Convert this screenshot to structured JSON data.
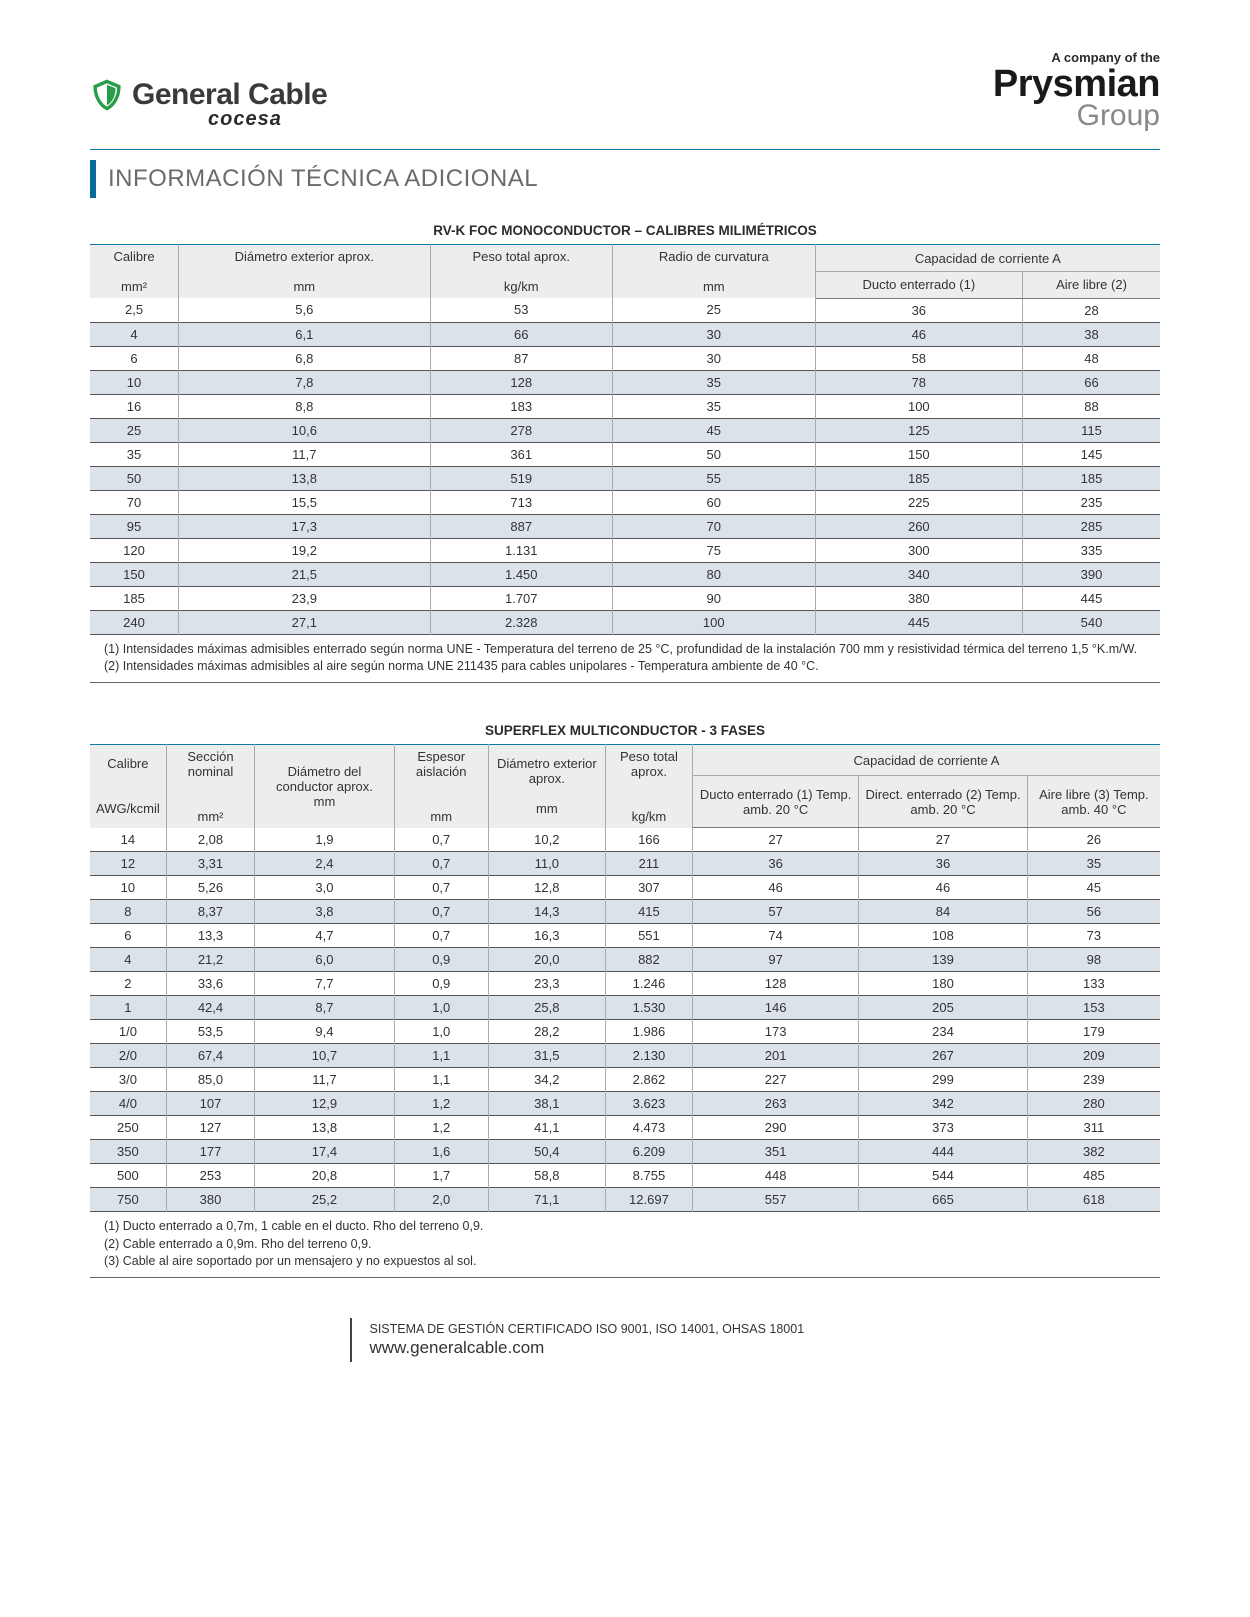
{
  "header": {
    "left_brand_main": "General Cable",
    "left_brand_sub": "cocesa",
    "right_tagline": "A company of the",
    "right_brand_main": "Prysmian",
    "right_brand_sub": "Group",
    "shield_color": "#2a9d4a"
  },
  "section_title": "INFORMACIÓN TÉCNICA ADICIONAL",
  "accent_color": "#0a6a98",
  "table1": {
    "title": "RV-K FOC MONOCONDUCTOR – CALIBRES MILIMÉTRICOS",
    "header_row1": [
      "Calibre",
      "Diámetro exterior aprox.",
      "Peso total aprox.",
      "Radio de curvatura",
      "Capacidad de corriente A"
    ],
    "header_row2": [
      "",
      "",
      "",
      "",
      "Ducto enterrado (1)",
      "Aire libre (2)"
    ],
    "units": [
      "mm²",
      "mm",
      "kg/km",
      "mm",
      "",
      ""
    ],
    "rows": [
      [
        "2,5",
        "5,6",
        "53",
        "25",
        "36",
        "28"
      ],
      [
        "4",
        "6,1",
        "66",
        "30",
        "46",
        "38"
      ],
      [
        "6",
        "6,8",
        "87",
        "30",
        "58",
        "48"
      ],
      [
        "10",
        "7,8",
        "128",
        "35",
        "78",
        "66"
      ],
      [
        "16",
        "8,8",
        "183",
        "35",
        "100",
        "88"
      ],
      [
        "25",
        "10,6",
        "278",
        "45",
        "125",
        "115"
      ],
      [
        "35",
        "11,7",
        "361",
        "50",
        "150",
        "145"
      ],
      [
        "50",
        "13,8",
        "519",
        "55",
        "185",
        "185"
      ],
      [
        "70",
        "15,5",
        "713",
        "60",
        "225",
        "235"
      ],
      [
        "95",
        "17,3",
        "887",
        "70",
        "260",
        "285"
      ],
      [
        "120",
        "19,2",
        "1.131",
        "75",
        "300",
        "335"
      ],
      [
        "150",
        "21,5",
        "1.450",
        "80",
        "340",
        "390"
      ],
      [
        "185",
        "23,9",
        "1.707",
        "90",
        "380",
        "445"
      ],
      [
        "240",
        "27,1",
        "2.328",
        "100",
        "445",
        "540"
      ]
    ],
    "notes": [
      "(1) Intensidades máximas admisibles enterrado según norma UNE - Temperatura del terreno de 25 °C, profundidad de la instalación 700 mm y resistividad térmica del terreno 1,5 °K.m/W.",
      "(2) Intensidades máximas admisibles al aire según norma UNE 211435 para cables unipolares - Temperatura ambiente de 40 °C."
    ]
  },
  "table2": {
    "title": "SUPERFLEX MULTICONDUCTOR - 3 FASES",
    "header_row1": [
      "Calibre",
      "Sección nominal",
      "Diámetro del conductor aprox.",
      "Espesor aislación",
      "Diámetro exterior aprox.",
      "Peso total aprox.",
      "Capacidad de corriente A"
    ],
    "header_row2": [
      "",
      "",
      "",
      "",
      "",
      "",
      "Ducto enterrado (1) Temp. amb. 20 °C",
      "Direct. enterrado (2) Temp. amb. 20 °C",
      "Aire libre (3) Temp. amb. 40 °C"
    ],
    "units": [
      "AWG/kcmil",
      "mm²",
      "mm",
      "mm",
      "mm",
      "kg/km",
      "",
      "",
      ""
    ],
    "rows": [
      [
        "14",
        "2,08",
        "1,9",
        "0,7",
        "10,2",
        "166",
        "27",
        "27",
        "26"
      ],
      [
        "12",
        "3,31",
        "2,4",
        "0,7",
        "11,0",
        "211",
        "36",
        "36",
        "35"
      ],
      [
        "10",
        "5,26",
        "3,0",
        "0,7",
        "12,8",
        "307",
        "46",
        "46",
        "45"
      ],
      [
        "8",
        "8,37",
        "3,8",
        "0,7",
        "14,3",
        "415",
        "57",
        "84",
        "56"
      ],
      [
        "6",
        "13,3",
        "4,7",
        "0,7",
        "16,3",
        "551",
        "74",
        "108",
        "73"
      ],
      [
        "4",
        "21,2",
        "6,0",
        "0,9",
        "20,0",
        "882",
        "97",
        "139",
        "98"
      ],
      [
        "2",
        "33,6",
        "7,7",
        "0,9",
        "23,3",
        "1.246",
        "128",
        "180",
        "133"
      ],
      [
        "1",
        "42,4",
        "8,7",
        "1,0",
        "25,8",
        "1.530",
        "146",
        "205",
        "153"
      ],
      [
        "1/0",
        "53,5",
        "9,4",
        "1,0",
        "28,2",
        "1.986",
        "173",
        "234",
        "179"
      ],
      [
        "2/0",
        "67,4",
        "10,7",
        "1,1",
        "31,5",
        "2.130",
        "201",
        "267",
        "209"
      ],
      [
        "3/0",
        "85,0",
        "11,7",
        "1,1",
        "34,2",
        "2.862",
        "227",
        "299",
        "239"
      ],
      [
        "4/0",
        "107",
        "12,9",
        "1,2",
        "38,1",
        "3.623",
        "263",
        "342",
        "280"
      ],
      [
        "250",
        "127",
        "13,8",
        "1,2",
        "41,1",
        "4.473",
        "290",
        "373",
        "311"
      ],
      [
        "350",
        "177",
        "17,4",
        "1,6",
        "50,4",
        "6.209",
        "351",
        "444",
        "382"
      ],
      [
        "500",
        "253",
        "20,8",
        "1,7",
        "58,8",
        "8.755",
        "448",
        "544",
        "485"
      ],
      [
        "750",
        "380",
        "25,2",
        "2,0",
        "71,1",
        "12.697",
        "557",
        "665",
        "618"
      ]
    ],
    "notes": [
      "(1) Ducto enterrado a 0,7m, 1 cable en el ducto. Rho del terreno 0,9.",
      "(2) Cable enterrado a 0,9m. Rho del terreno 0,9.",
      "(3) Cable al aire soportado por un mensajero y no expuestos al sol."
    ]
  },
  "footer": {
    "cert": "SISTEMA DE GESTIÓN CERTIFICADO ISO 9001, ISO 14001, OHSAS 18001",
    "url": "www.generalcable.com"
  }
}
